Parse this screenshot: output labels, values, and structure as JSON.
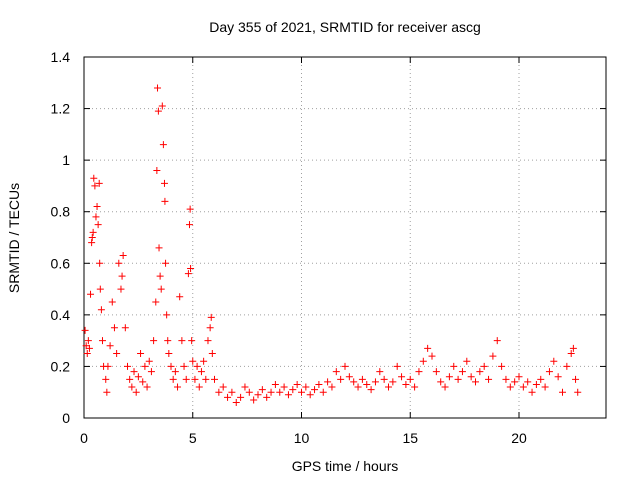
{
  "chart_data": {
    "type": "scatter",
    "title": "Day 355 of 2021, SRMTID for receiver ascg",
    "xlabel": "GPS time / hours",
    "ylabel": "SRMTID / TECUs",
    "xlim": [
      0,
      24
    ],
    "ylim": [
      0,
      1.4
    ],
    "xticks": [
      0,
      5,
      10,
      15,
      20
    ],
    "yticks": [
      0,
      0.2,
      0.4,
      0.6,
      0.8,
      1,
      1.2,
      1.4
    ],
    "ytick_labels": [
      "0",
      "0.2",
      "0.4",
      "0.6",
      "0.8",
      "1",
      "1.2",
      "1.4"
    ],
    "grid": true,
    "marker": "+",
    "color": "#ff0000",
    "series": [
      {
        "name": "SRMTID",
        "points": [
          [
            0.05,
            0.34
          ],
          [
            0.1,
            0.28
          ],
          [
            0.15,
            0.25
          ],
          [
            0.2,
            0.3
          ],
          [
            0.25,
            0.27
          ],
          [
            0.3,
            0.48
          ],
          [
            0.35,
            0.68
          ],
          [
            0.38,
            0.7
          ],
          [
            0.42,
            0.72
          ],
          [
            0.45,
            0.93
          ],
          [
            0.5,
            0.9
          ],
          [
            0.55,
            0.78
          ],
          [
            0.6,
            0.82
          ],
          [
            0.65,
            0.75
          ],
          [
            0.7,
            0.91
          ],
          [
            0.72,
            0.6
          ],
          [
            0.75,
            0.5
          ],
          [
            0.8,
            0.42
          ],
          [
            0.85,
            0.3
          ],
          [
            0.9,
            0.2
          ],
          [
            1.0,
            0.15
          ],
          [
            1.05,
            0.1
          ],
          [
            1.1,
            0.2
          ],
          [
            1.2,
            0.28
          ],
          [
            1.3,
            0.45
          ],
          [
            1.4,
            0.35
          ],
          [
            1.5,
            0.25
          ],
          [
            1.6,
            0.6
          ],
          [
            1.7,
            0.5
          ],
          [
            1.75,
            0.55
          ],
          [
            1.8,
            0.63
          ],
          [
            1.9,
            0.35
          ],
          [
            2.0,
            0.2
          ],
          [
            2.1,
            0.15
          ],
          [
            2.2,
            0.12
          ],
          [
            2.3,
            0.18
          ],
          [
            2.4,
            0.1
          ],
          [
            2.5,
            0.16
          ],
          [
            2.6,
            0.25
          ],
          [
            2.7,
            0.14
          ],
          [
            2.8,
            0.2
          ],
          [
            2.9,
            0.12
          ],
          [
            3.0,
            0.22
          ],
          [
            3.1,
            0.18
          ],
          [
            3.2,
            0.3
          ],
          [
            3.3,
            0.45
          ],
          [
            3.35,
            0.96
          ],
          [
            3.38,
            1.28
          ],
          [
            3.42,
            1.19
          ],
          [
            3.45,
            0.66
          ],
          [
            3.5,
            0.55
          ],
          [
            3.55,
            0.5
          ],
          [
            3.6,
            1.21
          ],
          [
            3.65,
            1.06
          ],
          [
            3.7,
            0.91
          ],
          [
            3.72,
            0.84
          ],
          [
            3.75,
            0.6
          ],
          [
            3.8,
            0.4
          ],
          [
            3.85,
            0.3
          ],
          [
            3.9,
            0.25
          ],
          [
            4.0,
            0.2
          ],
          [
            4.1,
            0.15
          ],
          [
            4.2,
            0.18
          ],
          [
            4.3,
            0.12
          ],
          [
            4.4,
            0.47
          ],
          [
            4.5,
            0.3
          ],
          [
            4.6,
            0.2
          ],
          [
            4.7,
            0.15
          ],
          [
            4.8,
            0.56
          ],
          [
            4.85,
            0.75
          ],
          [
            4.88,
            0.81
          ],
          [
            4.9,
            0.58
          ],
          [
            4.95,
            0.3
          ],
          [
            5.0,
            0.22
          ],
          [
            5.1,
            0.15
          ],
          [
            5.2,
            0.2
          ],
          [
            5.3,
            0.12
          ],
          [
            5.4,
            0.18
          ],
          [
            5.5,
            0.22
          ],
          [
            5.6,
            0.15
          ],
          [
            5.7,
            0.3
          ],
          [
            5.8,
            0.35
          ],
          [
            5.85,
            0.39
          ],
          [
            5.9,
            0.25
          ],
          [
            6.0,
            0.15
          ],
          [
            6.2,
            0.1
          ],
          [
            6.4,
            0.12
          ],
          [
            6.6,
            0.08
          ],
          [
            6.8,
            0.1
          ],
          [
            7.0,
            0.06
          ],
          [
            7.2,
            0.08
          ],
          [
            7.4,
            0.12
          ],
          [
            7.6,
            0.1
          ],
          [
            7.8,
            0.07
          ],
          [
            8.0,
            0.09
          ],
          [
            8.2,
            0.11
          ],
          [
            8.4,
            0.08
          ],
          [
            8.6,
            0.1
          ],
          [
            8.8,
            0.13
          ],
          [
            9.0,
            0.1
          ],
          [
            9.2,
            0.12
          ],
          [
            9.4,
            0.09
          ],
          [
            9.6,
            0.11
          ],
          [
            9.8,
            0.13
          ],
          [
            10.0,
            0.1
          ],
          [
            10.2,
            0.12
          ],
          [
            10.4,
            0.09
          ],
          [
            10.6,
            0.11
          ],
          [
            10.8,
            0.13
          ],
          [
            11.0,
            0.1
          ],
          [
            11.2,
            0.14
          ],
          [
            11.4,
            0.12
          ],
          [
            11.6,
            0.18
          ],
          [
            11.8,
            0.15
          ],
          [
            12.0,
            0.2
          ],
          [
            12.2,
            0.16
          ],
          [
            12.4,
            0.14
          ],
          [
            12.6,
            0.12
          ],
          [
            12.8,
            0.15
          ],
          [
            13.0,
            0.13
          ],
          [
            13.2,
            0.11
          ],
          [
            13.4,
            0.14
          ],
          [
            13.6,
            0.18
          ],
          [
            13.8,
            0.15
          ],
          [
            14.0,
            0.12
          ],
          [
            14.2,
            0.14
          ],
          [
            14.4,
            0.2
          ],
          [
            14.6,
            0.16
          ],
          [
            14.8,
            0.13
          ],
          [
            15.0,
            0.15
          ],
          [
            15.2,
            0.12
          ],
          [
            15.4,
            0.18
          ],
          [
            15.6,
            0.22
          ],
          [
            15.8,
            0.27
          ],
          [
            16.0,
            0.24
          ],
          [
            16.2,
            0.18
          ],
          [
            16.4,
            0.14
          ],
          [
            16.6,
            0.12
          ],
          [
            16.8,
            0.16
          ],
          [
            17.0,
            0.2
          ],
          [
            17.2,
            0.15
          ],
          [
            17.4,
            0.18
          ],
          [
            17.6,
            0.22
          ],
          [
            17.8,
            0.16
          ],
          [
            18.0,
            0.14
          ],
          [
            18.2,
            0.18
          ],
          [
            18.4,
            0.2
          ],
          [
            18.6,
            0.15
          ],
          [
            18.8,
            0.24
          ],
          [
            19.0,
            0.3
          ],
          [
            19.2,
            0.2
          ],
          [
            19.4,
            0.15
          ],
          [
            19.6,
            0.12
          ],
          [
            19.8,
            0.14
          ],
          [
            20.0,
            0.16
          ],
          [
            20.2,
            0.12
          ],
          [
            20.4,
            0.14
          ],
          [
            20.6,
            0.1
          ],
          [
            20.8,
            0.13
          ],
          [
            21.0,
            0.15
          ],
          [
            21.2,
            0.12
          ],
          [
            21.4,
            0.18
          ],
          [
            21.6,
            0.22
          ],
          [
            21.8,
            0.16
          ],
          [
            22.0,
            0.1
          ],
          [
            22.2,
            0.2
          ],
          [
            22.4,
            0.25
          ],
          [
            22.5,
            0.27
          ],
          [
            22.6,
            0.15
          ],
          [
            22.7,
            0.1
          ]
        ]
      }
    ]
  }
}
